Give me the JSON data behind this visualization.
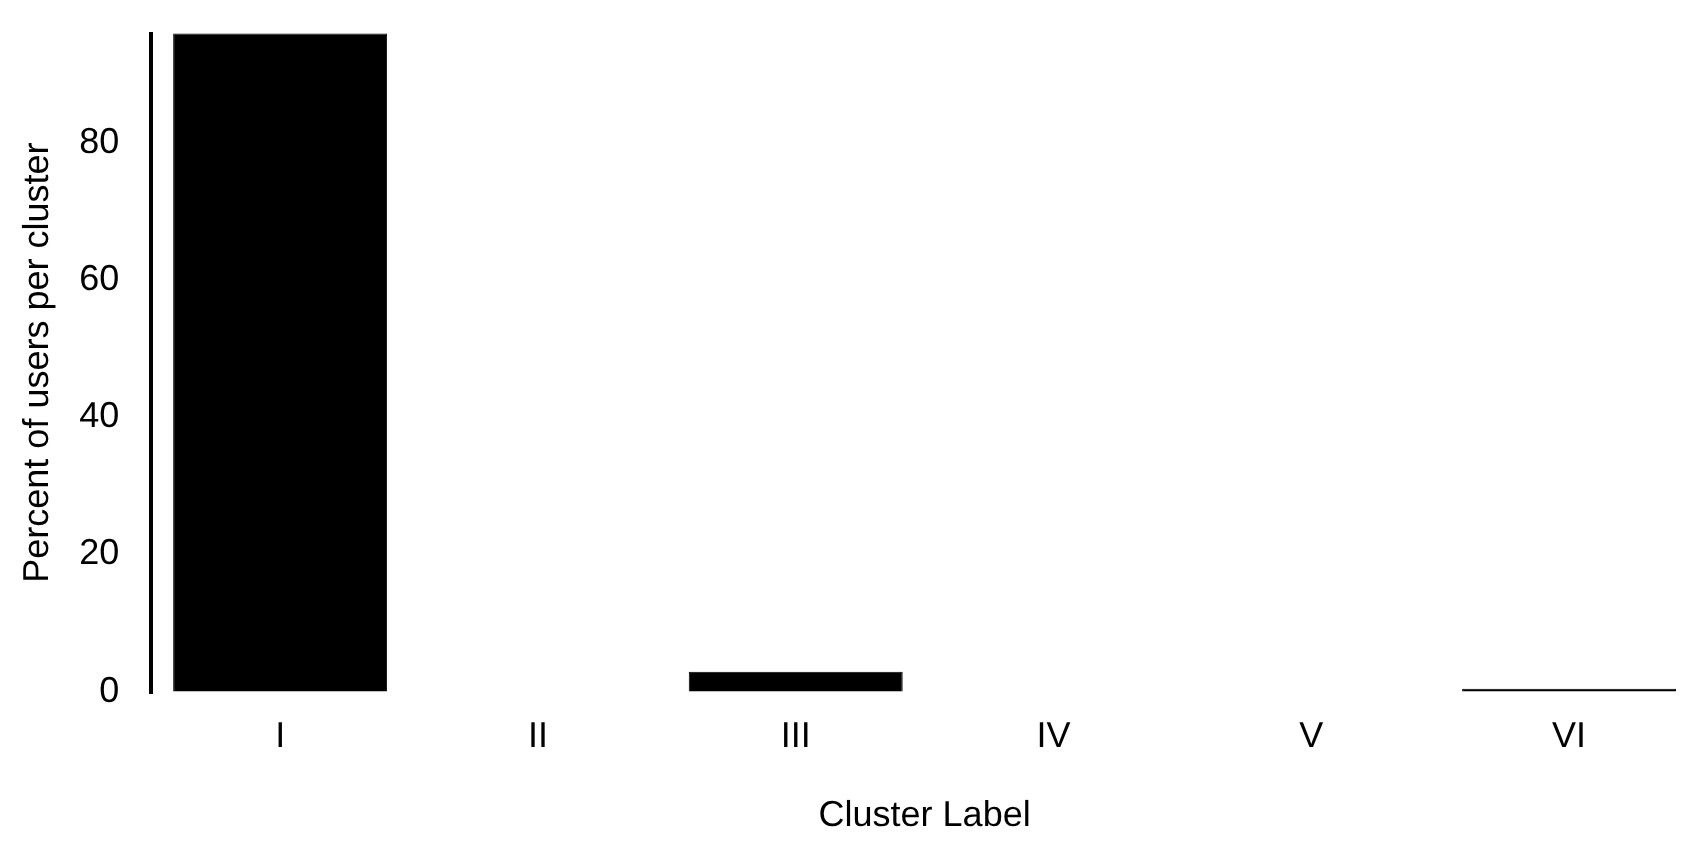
{
  "chart_data": {
    "type": "bar",
    "xlabel": "Cluster Label",
    "ylabel": "Percent of users per cluster",
    "categories": [
      "I",
      "II",
      "III",
      "IV",
      "V",
      "VI"
    ],
    "values": [
      96,
      0,
      2.9,
      0,
      0,
      0.4
    ],
    "color": "#000000",
    "ylim": [
      0,
      96
    ],
    "yticks": [
      0,
      20,
      40,
      60,
      80
    ],
    "grid": false,
    "legend": false
  }
}
